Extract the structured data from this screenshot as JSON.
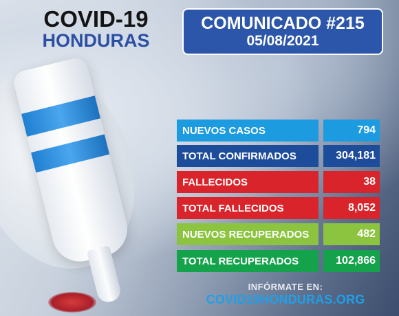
{
  "logo": {
    "title": "COVID-19",
    "subtitle": "HONDURAS"
  },
  "communique": {
    "title": "COMUNICADO #215",
    "date": "05/08/2021"
  },
  "stats": [
    {
      "label": "NUEVOS CASOS",
      "value": "794",
      "color": "#1d9be0"
    },
    {
      "label": "TOTAL CONFIRMADOS",
      "value": "304,181",
      "color": "#1d4d9a"
    },
    {
      "label": "FALLECIDOS",
      "value": "38",
      "color": "#d8242a"
    },
    {
      "label": "TOTAL FALLECIDOS",
      "value": "8,052",
      "color": "#d8242a"
    },
    {
      "label": "NUEVOS RECUPERADOS",
      "value": "482",
      "color": "#8cc43f"
    },
    {
      "label": "TOTAL RECUPERADOS",
      "value": "102,866",
      "color": "#14a34b"
    }
  ],
  "footer": {
    "label": "INFÓRMATE EN:",
    "website": "COVID19HONDURAS.ORG"
  }
}
